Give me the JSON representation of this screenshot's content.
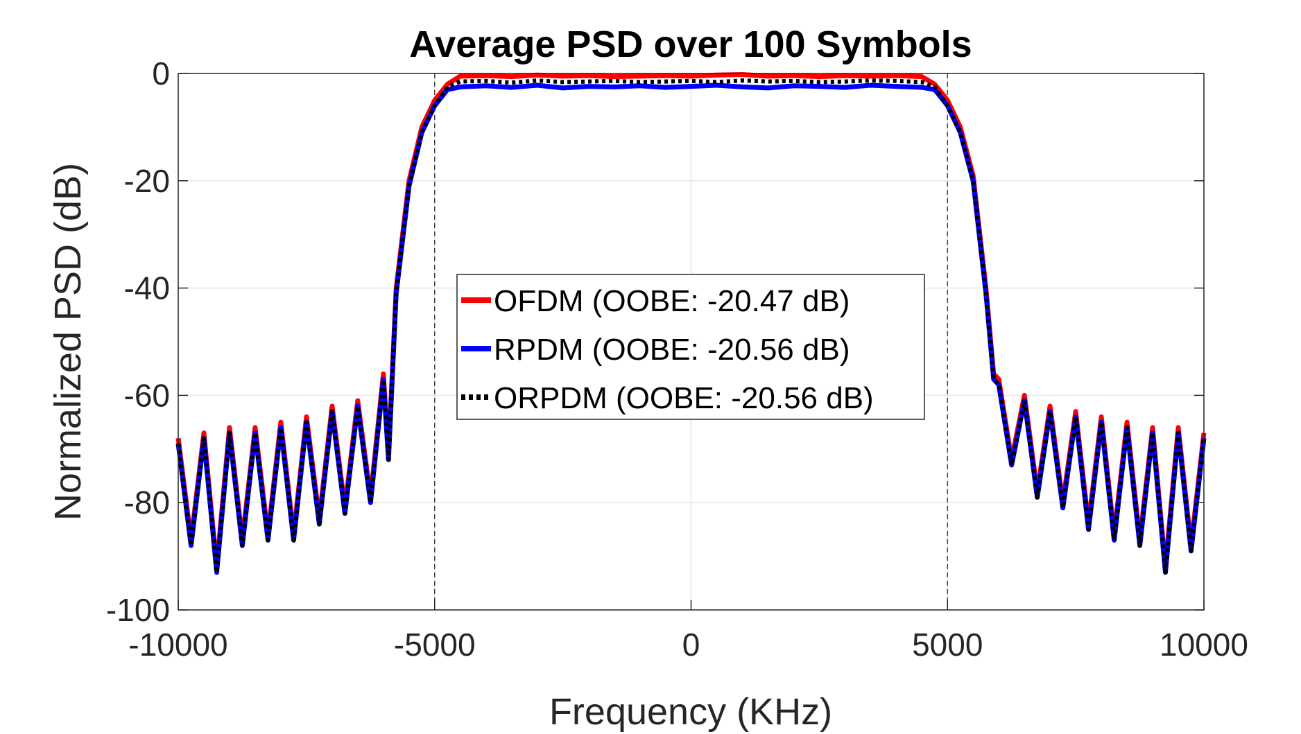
{
  "chart_data": {
    "type": "line",
    "title": "Average PSD over 100 Symbols",
    "xlabel": "Frequency (KHz)",
    "ylabel": "Normalized PSD (dB)",
    "xlim": [
      -10000,
      10000
    ],
    "ylim": [
      -100,
      0
    ],
    "xticks": [
      -10000,
      -5000,
      0,
      5000,
      10000
    ],
    "xtick_labels": [
      "-10000",
      "-5000",
      "0",
      "5000",
      "10000"
    ],
    "yticks": [
      0,
      -20,
      -40,
      -60,
      -80,
      -100
    ],
    "ytick_labels": [
      "0",
      "-20",
      "-40",
      "-60",
      "-80",
      "-100"
    ],
    "grid": true,
    "vlines": [
      -5000,
      5000
    ],
    "legend_position": "center",
    "x": [
      -10000,
      -9750,
      -9500,
      -9250,
      -9000,
      -8750,
      -8500,
      -8250,
      -8000,
      -7750,
      -7500,
      -7250,
      -7000,
      -6750,
      -6500,
      -6250,
      -6000,
      -5900,
      -5750,
      -5500,
      -5250,
      -5000,
      -4750,
      -4500,
      -4000,
      -3500,
      -3000,
      -2500,
      -2000,
      -1500,
      -1000,
      -500,
      0,
      500,
      1000,
      1500,
      2000,
      2500,
      3000,
      3500,
      4000,
      4500,
      4750,
      5000,
      5250,
      5500,
      5750,
      5900,
      6000,
      6250,
      6500,
      6750,
      7000,
      7250,
      7500,
      7750,
      8000,
      8250,
      8500,
      8750,
      9000,
      9250,
      9500,
      9750,
      10000
    ],
    "series": [
      {
        "name": "OFDM (OOBE: -20.47 dB)",
        "color": "#ff0000",
        "style": "solid",
        "values": [
          -68,
          -87,
          -67,
          -92,
          -66,
          -87,
          -66,
          -86,
          -65,
          -86,
          -64,
          -83,
          -62,
          -81,
          -61,
          -79,
          -56,
          -71,
          -40,
          -20,
          -10,
          -5,
          -2,
          -0.5,
          -0.4,
          -0.6,
          -0.3,
          -0.5,
          -0.4,
          -0.6,
          -0.5,
          -0.4,
          -0.5,
          -0.3,
          -0.2,
          -0.5,
          -0.4,
          -0.6,
          -0.4,
          -0.5,
          -0.4,
          -0.6,
          -2,
          -5,
          -10,
          -19,
          -40,
          -56,
          -57,
          -72,
          -60,
          -78,
          -62,
          -80,
          -63,
          -84,
          -64,
          -86,
          -65,
          -87,
          -66,
          -92,
          -66,
          -88,
          -67
        ]
      },
      {
        "name": "RPDM (OOBE: -20.56 dB)",
        "color": "#0000ff",
        "style": "solid",
        "values": [
          -69,
          -88,
          -68,
          -93,
          -67,
          -88,
          -67,
          -87,
          -66,
          -87,
          -65,
          -84,
          -63,
          -82,
          -62,
          -80,
          -57,
          -72,
          -41,
          -21,
          -11,
          -6,
          -3,
          -2.5,
          -2.3,
          -2.6,
          -2.2,
          -2.7,
          -2.4,
          -2.5,
          -2.3,
          -2.6,
          -2.4,
          -2.2,
          -2.5,
          -2.7,
          -2.3,
          -2.4,
          -2.6,
          -2.2,
          -2.4,
          -2.6,
          -3,
          -6,
          -11,
          -20,
          -41,
          -57,
          -58,
          -73,
          -61,
          -79,
          -63,
          -81,
          -64,
          -85,
          -65,
          -87,
          -66,
          -88,
          -67,
          -93,
          -67,
          -89,
          -68
        ]
      },
      {
        "name": "ORPDM (OOBE: -20.56 dB)",
        "color": "#000000",
        "style": "dotted",
        "values": [
          -69,
          -88,
          -68,
          -93,
          -67,
          -88,
          -67,
          -87,
          -66,
          -87,
          -65,
          -84,
          -63,
          -82,
          -62,
          -80,
          -57,
          -72,
          -41,
          -21,
          -11,
          -6,
          -2.5,
          -1.5,
          -1.4,
          -1.7,
          -1.3,
          -1.6,
          -1.5,
          -1.4,
          -1.6,
          -1.5,
          -1.4,
          -1.6,
          -1.3,
          -1.5,
          -1.4,
          -1.6,
          -1.5,
          -1.3,
          -1.4,
          -1.6,
          -2.5,
          -6,
          -11,
          -20,
          -41,
          -57,
          -58,
          -73,
          -61,
          -79,
          -63,
          -81,
          -64,
          -85,
          -65,
          -87,
          -66,
          -88,
          -67,
          -93,
          -67,
          -89,
          -68
        ]
      }
    ]
  }
}
